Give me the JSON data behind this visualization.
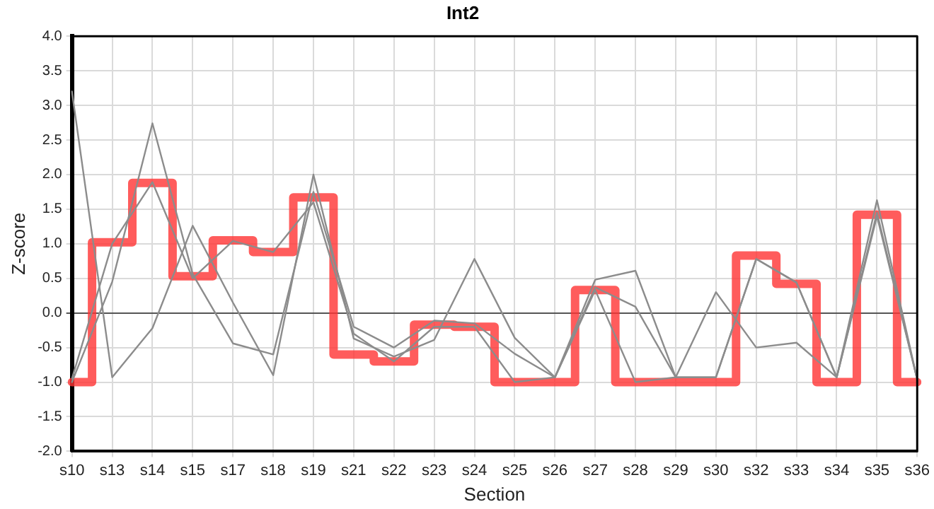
{
  "chart_data": {
    "type": "line",
    "title": "Int2",
    "xlabel": "Section",
    "ylabel": "Z-score",
    "categories": [
      "s10",
      "s13",
      "s14",
      "s15",
      "s17",
      "s18",
      "s19",
      "s21",
      "s22",
      "s23",
      "s24",
      "s25",
      "s26",
      "s27",
      "s28",
      "s29",
      "s30",
      "s32",
      "s33",
      "s34",
      "s35",
      "s36"
    ],
    "series": [
      {
        "type": "line",
        "color": "#8c8c8c",
        "values": [
          3.2,
          -0.93,
          -0.22,
          1.26,
          0.15,
          -0.9,
          2.0,
          -0.37,
          -0.63,
          -0.39,
          0.78,
          -0.36,
          -0.93,
          0.48,
          0.61,
          -0.93,
          0.3,
          -0.5,
          -0.43,
          -0.93,
          1.63,
          -0.96
        ]
      },
      {
        "type": "line",
        "color": "#8c8c8c",
        "values": [
          -1.0,
          0.45,
          2.74,
          0.56,
          -0.44,
          -0.6,
          1.75,
          -0.2,
          -0.5,
          -0.11,
          -0.15,
          -0.59,
          -0.93,
          0.37,
          0.09,
          -0.93,
          -0.93,
          0.78,
          0.44,
          -0.93,
          1.4,
          -0.96
        ]
      },
      {
        "type": "line",
        "color": "#8c8c8c",
        "values": [
          -0.95,
          1.0,
          1.89,
          0.5,
          1.04,
          0.88,
          1.6,
          -0.3,
          -0.7,
          -0.2,
          -0.2,
          -1.0,
          -0.93,
          0.33,
          -1.0,
          -0.93,
          -0.93,
          0.78,
          0.44,
          -0.93,
          1.45,
          -0.96
        ]
      },
      {
        "type": "step",
        "color": "#ff3333",
        "values": [
          -1.0,
          1.02,
          1.88,
          0.53,
          1.05,
          0.88,
          1.67,
          -0.6,
          -0.7,
          -0.17,
          -0.2,
          -1.0,
          -1.0,
          0.33,
          -1.0,
          -1.0,
          -1.0,
          0.83,
          0.42,
          -1.0,
          1.42,
          -1.0
        ]
      }
    ],
    "ylim": [
      -2.0,
      4.0
    ],
    "yticks": [
      {
        "value": -2,
        "label": "-2.0"
      },
      {
        "value": -1.5,
        "label": "-1.5"
      },
      {
        "value": -1,
        "label": "-1.0"
      },
      {
        "value": -0.5,
        "label": "-0.5"
      },
      {
        "value": 0,
        "label": "0.0"
      },
      {
        "value": 0.5,
        "label": "0.5"
      },
      {
        "value": 1,
        "label": "1.0"
      },
      {
        "value": 1.5,
        "label": "1.5"
      },
      {
        "value": 2,
        "label": "2.0"
      },
      {
        "value": 2.5,
        "label": "2.5"
      },
      {
        "value": 3,
        "label": "3.0"
      },
      {
        "value": 3.5,
        "label": "3.5"
      },
      {
        "value": 4,
        "label": "4.0"
      }
    ],
    "grid": true,
    "legend": false,
    "marker": "none",
    "line_style": "solid"
  }
}
